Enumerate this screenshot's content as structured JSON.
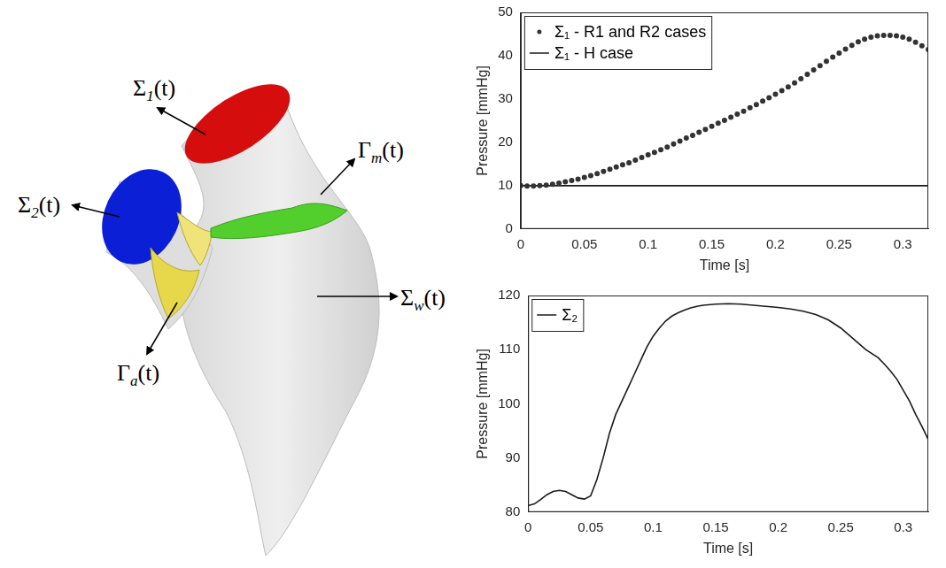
{
  "diagram": {
    "labels": [
      {
        "symbol": "Σ",
        "subscript": "1",
        "argument": "(t)"
      },
      {
        "symbol": "Σ",
        "subscript": "2",
        "argument": "(t)"
      },
      {
        "symbol": "Γ",
        "subscript": "m",
        "argument": "(t)"
      },
      {
        "symbol": "Σ",
        "subscript": "w",
        "argument": "(t)"
      },
      {
        "symbol": "Γ",
        "subscript": "a",
        "argument": "(t)"
      }
    ]
  },
  "chart_data": [
    {
      "type": "line",
      "xlabel": "Time [s]",
      "ylabel": "Pressure [mmHg]",
      "xlim": [
        0,
        0.32
      ],
      "xticks": [
        0,
        0.05,
        0.1,
        0.15,
        0.2,
        0.25,
        0.3
      ],
      "ylim": [
        0,
        50
      ],
      "yticks": [
        0,
        10,
        20,
        30,
        40,
        50
      ],
      "grid": false,
      "legend": "upper left",
      "series": [
        {
          "name": "Σ₁ - R1 and R2 cases",
          "color": "#333333",
          "type": "scatter",
          "marker": "circle",
          "line_style": "none",
          "x": [
            0,
            0.005,
            0.01,
            0.015,
            0.02,
            0.025,
            0.03,
            0.035,
            0.04,
            0.045,
            0.05,
            0.055,
            0.06,
            0.065,
            0.07,
            0.075,
            0.08,
            0.085,
            0.09,
            0.095,
            0.1,
            0.105,
            0.11,
            0.115,
            0.12,
            0.125,
            0.13,
            0.135,
            0.14,
            0.145,
            0.15,
            0.155,
            0.16,
            0.165,
            0.17,
            0.175,
            0.18,
            0.185,
            0.19,
            0.195,
            0.2,
            0.205,
            0.21,
            0.215,
            0.22,
            0.225,
            0.23,
            0.235,
            0.24,
            0.245,
            0.25,
            0.255,
            0.26,
            0.265,
            0.27,
            0.275,
            0.28,
            0.285,
            0.29,
            0.295,
            0.3,
            0.305,
            0.31,
            0.315,
            0.32
          ],
          "values": [
            10.0,
            9.9,
            9.9,
            10.0,
            10.1,
            10.3,
            10.6,
            10.9,
            11.2,
            11.5,
            11.9,
            12.3,
            12.8,
            13.3,
            13.8,
            14.3,
            14.8,
            15.3,
            15.9,
            16.5,
            17.1,
            17.7,
            18.3,
            18.9,
            19.6,
            20.3,
            21.0,
            21.6,
            22.3,
            23.0,
            23.7,
            24.4,
            25.1,
            25.8,
            26.5,
            27.2,
            28.0,
            28.7,
            29.5,
            30.3,
            31.1,
            31.9,
            32.8,
            33.7,
            34.7,
            35.7,
            36.7,
            37.7,
            38.7,
            39.7,
            40.6,
            41.5,
            42.4,
            43.2,
            43.8,
            44.3,
            44.6,
            44.7,
            44.7,
            44.6,
            44.3,
            43.8,
            43.1,
            42.3,
            41.4
          ]
        },
        {
          "name": "Σ₁ - H case",
          "color": "#1a1a1a",
          "type": "line",
          "marker": "none",
          "line_style": "solid",
          "x": [
            0,
            0.32
          ],
          "values": [
            10,
            10
          ]
        }
      ]
    },
    {
      "type": "line",
      "xlabel": "Time [s]",
      "ylabel": "Pressure [mmHg]",
      "xlim": [
        0,
        0.32
      ],
      "xticks": [
        0,
        0.05,
        0.1,
        0.15,
        0.2,
        0.25,
        0.3
      ],
      "ylim": [
        80,
        120
      ],
      "yticks": [
        80,
        90,
        100,
        110,
        120
      ],
      "grid": false,
      "legend": "upper left",
      "series": [
        {
          "name": "Σ₂",
          "color": "#1a1a1a",
          "type": "line",
          "marker": "none",
          "line_style": "solid",
          "x": [
            0,
            0.005,
            0.01,
            0.015,
            0.02,
            0.025,
            0.03,
            0.035,
            0.04,
            0.045,
            0.05,
            0.055,
            0.06,
            0.065,
            0.07,
            0.075,
            0.08,
            0.085,
            0.09,
            0.095,
            0.1,
            0.105,
            0.11,
            0.115,
            0.12,
            0.125,
            0.13,
            0.135,
            0.14,
            0.15,
            0.16,
            0.17,
            0.18,
            0.19,
            0.2,
            0.21,
            0.22,
            0.23,
            0.24,
            0.25,
            0.26,
            0.27,
            0.28,
            0.285,
            0.29,
            0.295,
            0.3,
            0.305,
            0.31,
            0.315,
            0.32
          ],
          "values": [
            81.2,
            81.5,
            82.3,
            83.2,
            83.8,
            84.0,
            83.8,
            83.2,
            82.6,
            82.4,
            83.0,
            86.0,
            90.0,
            94.5,
            98.0,
            100.5,
            103.0,
            105.5,
            108.0,
            110.5,
            112.5,
            114.0,
            115.3,
            116.2,
            116.8,
            117.3,
            117.7,
            118.0,
            118.2,
            118.4,
            118.5,
            118.4,
            118.2,
            118.0,
            117.8,
            117.5,
            117.1,
            116.5,
            115.5,
            114.0,
            112.0,
            110.0,
            108.5,
            107.3,
            106.0,
            104.5,
            102.5,
            100.5,
            98.0,
            95.8,
            93.4
          ]
        }
      ]
    }
  ]
}
